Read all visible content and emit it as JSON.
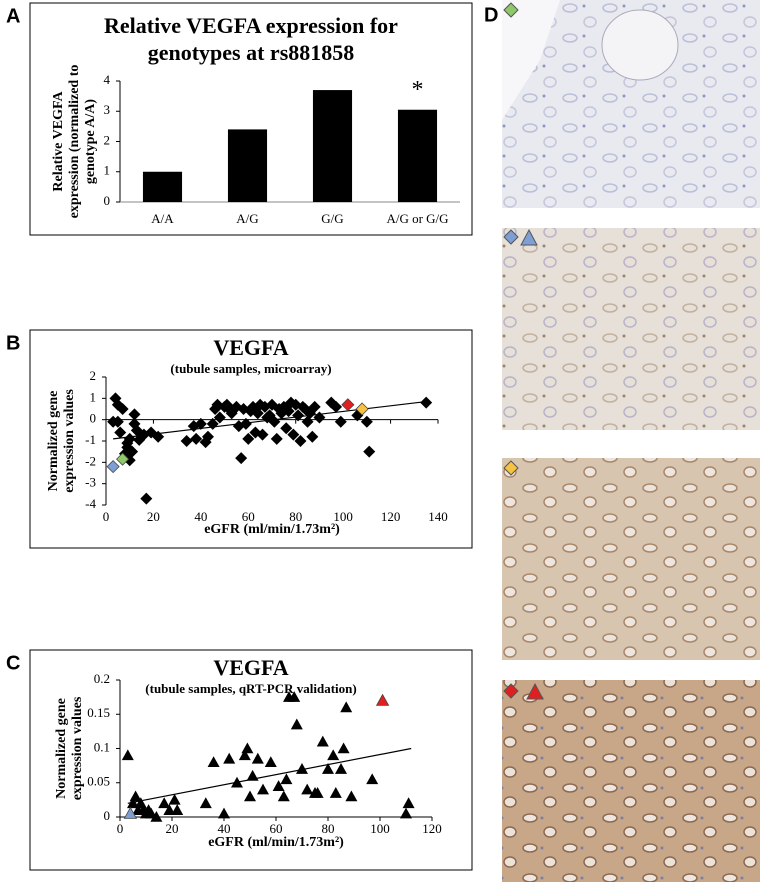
{
  "chart_data": [
    {
      "type": "bar",
      "panel_label": "A",
      "title": [
        "Relative VEGFA expression for",
        "genotypes at rs881858"
      ],
      "y_label": [
        "Relative VEGFA",
        "expression (normalized to",
        "genotype A/A)"
      ],
      "categories": [
        "A/A",
        "A/G",
        "G/G",
        "A/G or G/G"
      ],
      "values": [
        1,
        2.4,
        3.7,
        3.05
      ],
      "color": "#000000",
      "annotation": {
        "text": "*",
        "category": 3
      },
      "ylim": [
        0,
        4
      ],
      "yticks": [
        0,
        1,
        2,
        3,
        4
      ]
    },
    {
      "type": "scatter",
      "panel_label": "B",
      "title": [
        "VEGFA"
      ],
      "subtitle": "(tubule samples, microarray)",
      "y_label": [
        "Normalized gene",
        "expression values"
      ],
      "x_label": "eGFR (ml/min/1.73m²)",
      "xlim": [
        0,
        140
      ],
      "xticks": [
        0,
        20,
        40,
        60,
        80,
        100,
        120,
        140
      ],
      "ylim": [
        -4,
        2
      ],
      "yticks": [
        -4,
        -3,
        -2,
        -1,
        0,
        1,
        2
      ],
      "series": [
        {
          "color": "#000000",
          "marker": "diamond",
          "x": [
            3,
            4,
            5,
            5,
            6,
            7,
            8,
            9,
            9,
            10,
            10,
            11,
            12,
            12,
            13,
            14,
            16,
            17,
            19,
            22,
            34,
            37,
            38,
            40,
            42,
            43,
            45,
            46,
            47,
            48,
            50,
            51,
            52,
            53,
            55,
            56,
            57,
            58,
            59,
            60,
            61,
            62,
            63,
            64,
            65,
            66,
            67,
            68,
            69,
            70,
            71,
            72,
            73,
            74,
            75,
            76,
            77,
            78,
            79,
            80,
            81,
            82,
            83,
            84,
            85,
            86,
            87,
            88,
            90,
            95,
            97,
            99,
            106,
            110,
            111,
            135
          ],
          "values": [
            -0.1,
            1.0,
            0.7,
            -0.1,
            -0.6,
            0.5,
            -1.6,
            -1.1,
            -1.3,
            -1.9,
            -0.9,
            -1.5,
            -0.2,
            0.25,
            -0.5,
            -0.95,
            -0.7,
            -3.7,
            -0.6,
            -0.8,
            -1.0,
            -0.3,
            -0.9,
            -0.2,
            -1.05,
            -0.8,
            -0.2,
            0.5,
            0.7,
            0.1,
            0.6,
            0.7,
            0.5,
            0.3,
            0.6,
            -0.3,
            -1.8,
            0.5,
            -0.2,
            -0.9,
            0.4,
            0.6,
            -0.6,
            0.3,
            0.7,
            -0.7,
            0.6,
            0.1,
            0.2,
            0.7,
            -0.1,
            -0.9,
            0.5,
            0.3,
            0.6,
            -0.4,
            0.4,
            0.8,
            -0.7,
            0.7,
            0.2,
            -1.0,
            0.6,
            0.5,
            -0.1,
            0.3,
            -0.8,
            0.6,
            0.1,
            0.8,
            0.6,
            -0.1,
            0.2,
            -0.1,
            -1.5,
            0.8
          ]
        },
        {
          "color": "#7f9fd4",
          "marker": "diamond",
          "x": [
            3
          ],
          "values": [
            -2.2
          ]
        },
        {
          "color": "#8fc86a",
          "marker": "diamond",
          "x": [
            7
          ],
          "values": [
            -1.85
          ]
        },
        {
          "color": "#e02020",
          "marker": "diamond",
          "x": [
            102
          ],
          "values": [
            0.7
          ]
        },
        {
          "color": "#f5c242",
          "marker": "diamond",
          "x": [
            108
          ],
          "values": [
            0.5
          ]
        }
      ],
      "trendline": {
        "x": [
          3,
          135
        ],
        "y": [
          -0.9,
          0.85
        ]
      }
    },
    {
      "type": "scatter",
      "panel_label": "C",
      "title": [
        "VEGFA"
      ],
      "subtitle": "(tubule samples, qRT-PCR validation)",
      "y_label": [
        "Normalized gene",
        "expression values"
      ],
      "x_label": "eGFR (ml/min/1.73m²)",
      "xlim": [
        0,
        120
      ],
      "xticks": [
        0,
        20,
        40,
        60,
        80,
        100,
        120
      ],
      "ylim": [
        0,
        0.2
      ],
      "yticks": [
        0,
        0.05,
        0.1,
        0.15,
        0.2
      ],
      "series": [
        {
          "color": "#000000",
          "marker": "triangle",
          "x": [
            3,
            5,
            6,
            7,
            8,
            9,
            10,
            11,
            12,
            14,
            17,
            19,
            21,
            22,
            33,
            36,
            40,
            42,
            45,
            48,
            49,
            50,
            51,
            53,
            55,
            58,
            61,
            63,
            64,
            65,
            67,
            68,
            70,
            72,
            75,
            76,
            78,
            80,
            82,
            83,
            85,
            86,
            87,
            89,
            97,
            110,
            111
          ],
          "values": [
            0.09,
            0.02,
            0.03,
            0.01,
            0.02,
            0.01,
            0.005,
            0.01,
            0.005,
            0.0,
            0.02,
            0.01,
            0.025,
            0.01,
            0.02,
            0.08,
            0.005,
            0.085,
            0.05,
            0.09,
            0.1,
            0.03,
            0.06,
            0.085,
            0.04,
            0.08,
            0.045,
            0.03,
            0.055,
            0.175,
            0.175,
            0.135,
            0.07,
            0.04,
            0.035,
            0.035,
            0.11,
            0.07,
            0.09,
            0.035,
            0.07,
            0.1,
            0.16,
            0.03,
            0.055,
            0.005,
            0.02
          ]
        },
        {
          "color": "#7f9fd4",
          "marker": "triangle",
          "x": [
            4
          ],
          "values": [
            0.005
          ]
        },
        {
          "color": "#e02020",
          "marker": "triangle",
          "x": [
            101
          ],
          "values": [
            0.17
          ]
        }
      ],
      "trendline": {
        "x": [
          3,
          112
        ],
        "y": [
          0.02,
          0.1
        ]
      }
    }
  ],
  "image_panel": {
    "label": "D"
  }
}
